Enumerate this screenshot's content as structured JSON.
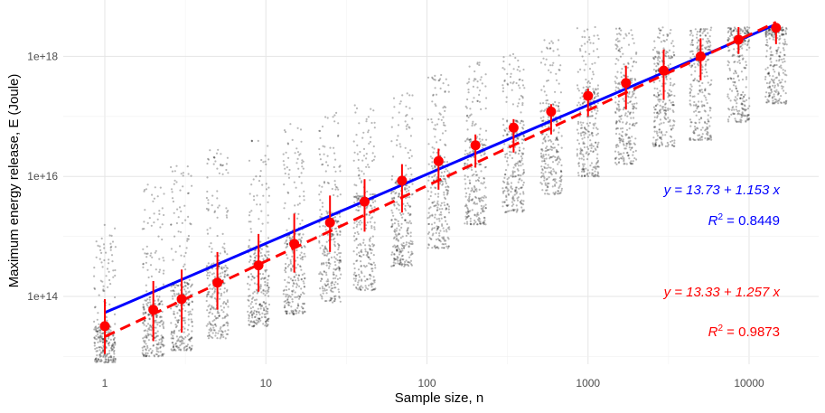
{
  "chart_data": {
    "type": "scatter",
    "title": "",
    "xlabel": "Sample size, n",
    "ylabel": "Maximum energy release, E (Joule)",
    "x_scale": "log10",
    "y_scale": "log10",
    "xlim": [
      0.5,
      25000
    ],
    "ylim": [
      8000000000000.0,
      6e+18
    ],
    "x_ticks": [
      1,
      10,
      100,
      1000,
      10000
    ],
    "x_tick_labels": [
      "1",
      "10",
      "100",
      "1000",
      "10000"
    ],
    "y_ticks": [
      100000000000000.0,
      1e+16,
      1e+18
    ],
    "y_tick_labels": [
      "1e+14",
      "1e+16",
      "1e+18"
    ],
    "grid": true,
    "legend": "none",
    "series": [
      {
        "kind": "raw-simulated-samples",
        "color": "#000000",
        "x": [
          1,
          2,
          3,
          5,
          9,
          15,
          25,
          41,
          70,
          118,
          200,
          345,
          590,
          1000,
          1720,
          2950,
          5000,
          8600,
          14700
        ],
        "median_log10_E": [
          13.2,
          13.65,
          13.9,
          14.2,
          14.5,
          14.8,
          15.1,
          15.4,
          15.7,
          16.0,
          16.3,
          16.6,
          16.9,
          17.15,
          17.4,
          17.65,
          17.9,
          18.2,
          18.35
        ],
        "spread_low_log10": [
          12.9,
          13.0,
          13.1,
          13.3,
          13.5,
          13.7,
          13.9,
          14.1,
          14.5,
          14.8,
          15.2,
          15.4,
          15.7,
          16.0,
          16.2,
          16.5,
          16.6,
          16.9,
          17.2
        ],
        "spread_high_log10": [
          15.2,
          15.9,
          16.2,
          16.5,
          16.6,
          16.9,
          17.1,
          17.2,
          17.4,
          17.7,
          17.9,
          18.05,
          18.3,
          18.5,
          18.5,
          18.5,
          18.5,
          18.5,
          18.5
        ]
      },
      {
        "kind": "mean-with-error",
        "color": "#ff0000",
        "x": [
          1,
          2,
          3,
          5,
          9,
          15,
          25,
          41,
          70,
          118,
          200,
          345,
          590,
          1000,
          1720,
          2950,
          5000,
          8600,
          14700
        ],
        "y": [
          32000000000000.0,
          60000000000000.0,
          90000000000000.0,
          170000000000000.0,
          330000000000000.0,
          750000000000000.0,
          1700000000000000.0,
          3800000000000000.0,
          8500000000000000.0,
          1.8e+16,
          3.3e+16,
          6.5e+16,
          1.2e+17,
          2.2e+17,
          3.6e+17,
          5.8e+17,
          1e+18,
          1.9e+18,
          3e+18
        ],
        "ymin": [
          11000000000000.0,
          18000000000000.0,
          25000000000000.0,
          60000000000000.0,
          120000000000000.0,
          250000000000000.0,
          550000000000000.0,
          1200000000000000.0,
          2500000000000000.0,
          6000000000000000.0,
          1.4e+16,
          2.5e+16,
          5e+16,
          1e+17,
          1.3e+17,
          1.9e+17,
          4e+17,
          1.1e+18,
          1.6e+18
        ],
        "ymax": [
          90000000000000.0,
          180000000000000.0,
          280000000000000.0,
          550000000000000.0,
          1100000000000000.0,
          2400000000000000.0,
          4800000000000000.0,
          9000000000000000.0,
          1.6e+16,
          2.9e+16,
          5e+16,
          9e+16,
          1.6e+17,
          2.9e+17,
          7e+17,
          1.3e+18,
          2e+18,
          3.2e+18,
          3.5e+18
        ]
      },
      {
        "kind": "fit-line",
        "color": "#0000ff",
        "style": "solid",
        "intercept": 13.73,
        "slope": 1.153,
        "x_range": [
          1,
          14700
        ]
      },
      {
        "kind": "fit-line",
        "color": "#ff0000",
        "style": "dashed",
        "intercept": 13.33,
        "slope": 1.257,
        "x_range": [
          1,
          14700
        ]
      }
    ],
    "annotations": {
      "blue_equation": "y = 13.73 + 1.153 x",
      "blue_r2": "R² = 0.8449",
      "red_equation": "y = 13.33 + 1.257 x",
      "red_r2": "R² = 0.9873"
    }
  }
}
